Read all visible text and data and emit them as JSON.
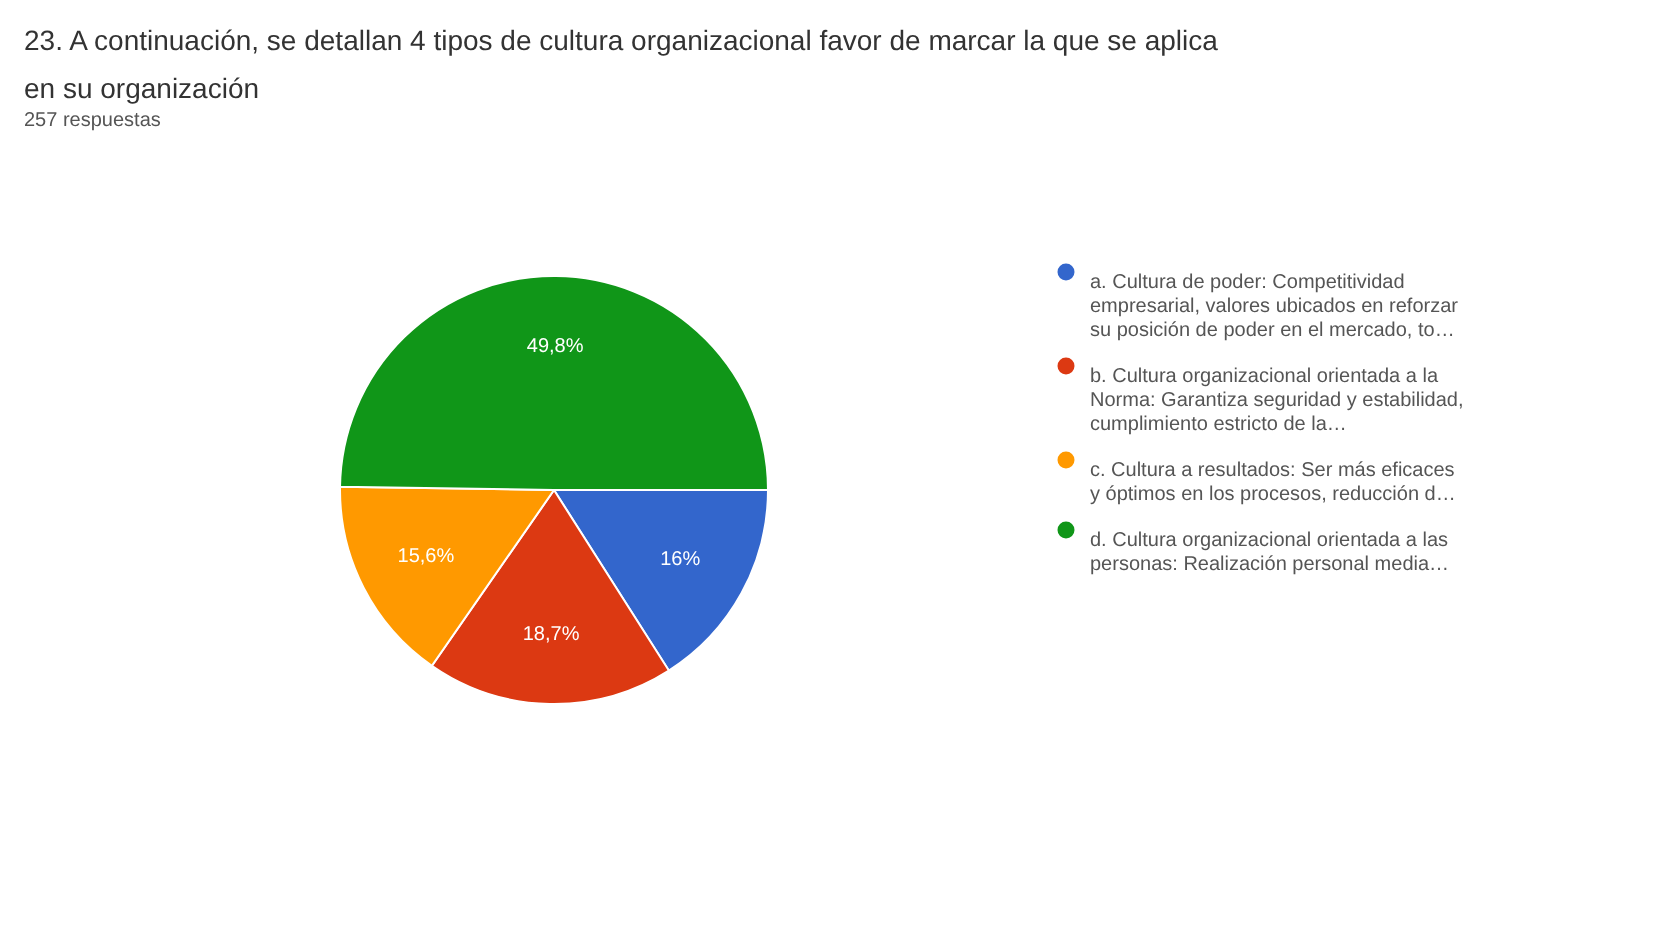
{
  "chart_data": {
    "type": "pie",
    "title": "23. A continuación, se detallan 4 tipos de cultura organizacional favor de marcar la que se aplica en su organización",
    "subtitle": "257 respuestas",
    "categories": [
      "a. Cultura de poder: Competitividad empresarial, valores ubicados en reforzar su posición de poder en el mercado, to…",
      "b. Cultura organizacional orientada a la Norma: Garantiza seguridad y estabilidad, cumplimiento estricto de la…",
      "c. Cultura a resultados: Ser más eficaces y óptimos en los procesos, reducción d…",
      "d. Cultura organizacional orientada a las personas: Realización personal media…"
    ],
    "values": [
      16,
      18.7,
      15.6,
      49.8
    ],
    "value_labels": [
      "16%",
      "18,7%",
      "15,6%",
      "49,8%"
    ],
    "colors": [
      "#3366cc",
      "#dc3912",
      "#ff9900",
      "#109618"
    ],
    "legend": "right"
  }
}
